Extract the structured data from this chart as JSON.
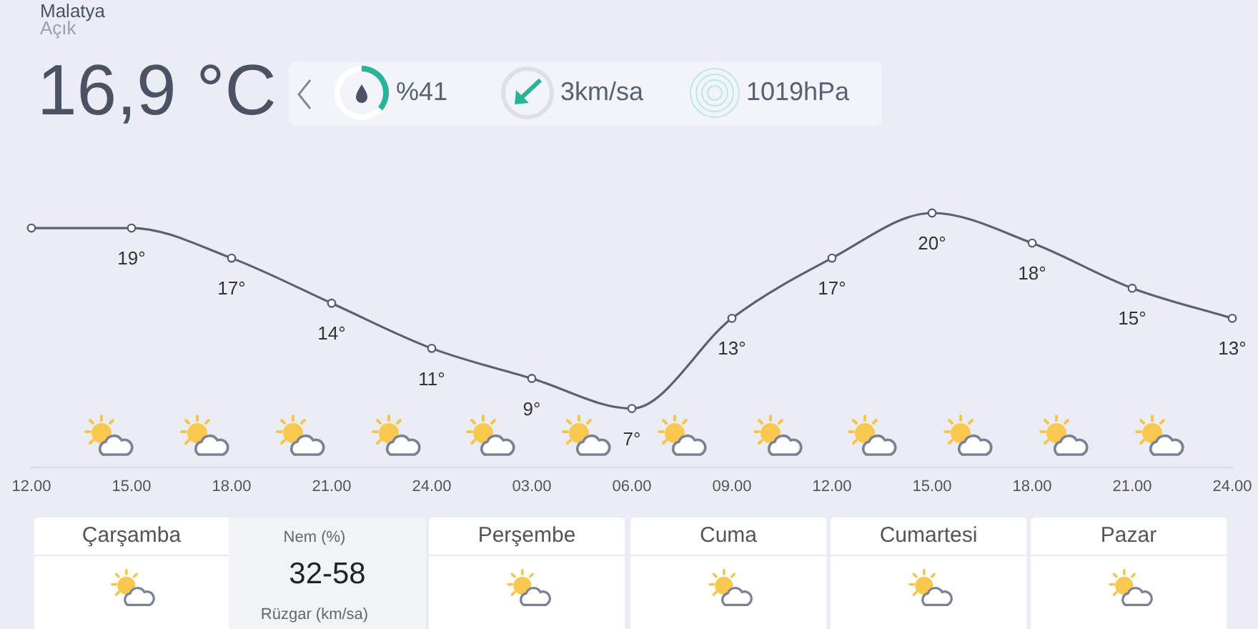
{
  "chart_data": {
    "type": "line",
    "title": "Malatya",
    "categories": [
      "12.00",
      "15.00",
      "18.00",
      "21.00",
      "24.00",
      "03.00",
      "06.00",
      "09.00",
      "12.00",
      "15.00",
      "18.00",
      "21.00",
      "24.00"
    ],
    "values": [
      19,
      19,
      17,
      14,
      11,
      9,
      7,
      13,
      17,
      20,
      18,
      15,
      13
    ],
    "value_labels": [
      null,
      "19°",
      "17°",
      "14°",
      "11°",
      "9°",
      "7°",
      "13°",
      "17°",
      "20°",
      "18°",
      "15°",
      "13°"
    ],
    "color": "#5b6172",
    "marker": "circle",
    "tick_labels": "x",
    "annotations": [
      "Açık",
      "16,9 °C",
      "%41",
      "3km/sa",
      "1019hPa",
      "Çarşamba",
      "Nem (%)",
      "32-58",
      "Rüzgar (km/sa)",
      "Perşembe",
      "Cuma",
      "Cumartesi",
      "Pazar"
    ]
  }
}
